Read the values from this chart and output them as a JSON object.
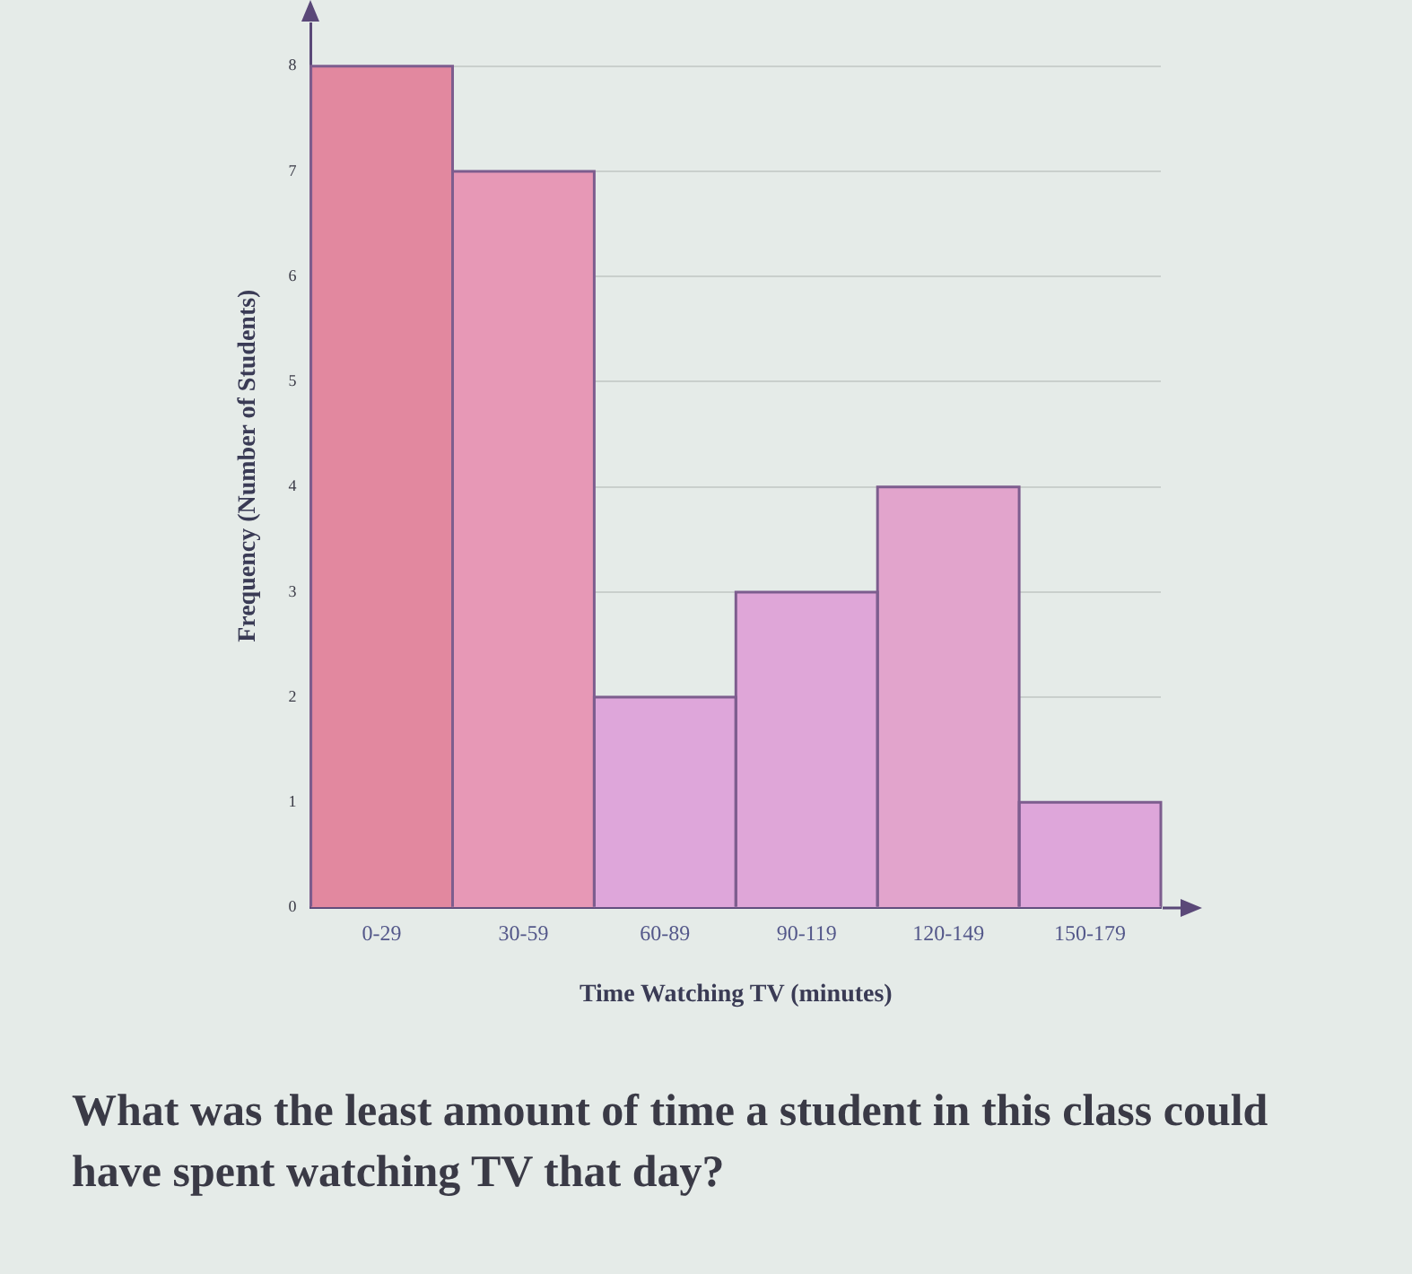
{
  "chart_data": {
    "type": "bar",
    "xlabel": "Time Watching TV (minutes)",
    "ylabel": "Frequency (Number of Students)",
    "categories": [
      "0-29",
      "30-59",
      "60-89",
      "90-119",
      "120-149",
      "150-179"
    ],
    "values": [
      8,
      7,
      2,
      3,
      4,
      1
    ],
    "colors": [
      "#e2889f",
      "#e798b6",
      "#dea6da",
      "#dfa6d8",
      "#e2a4cc",
      "#dea6da"
    ],
    "ylim": [
      0,
      8.4
    ],
    "yticks": [
      0,
      1,
      2,
      3,
      4,
      5,
      6,
      7,
      8
    ],
    "grid": "y",
    "annotations": [
      "What was the least amount of time a student in this class could have spent watching TV that day?"
    ]
  }
}
